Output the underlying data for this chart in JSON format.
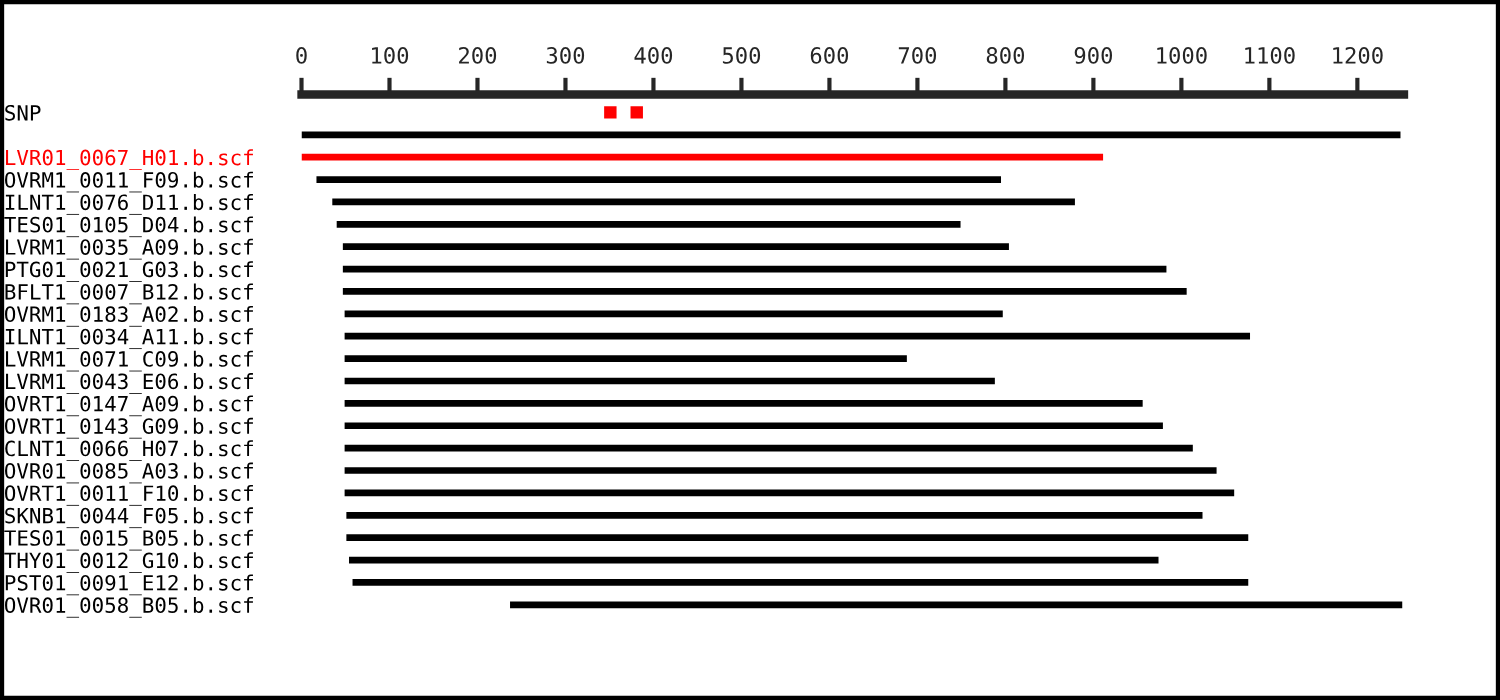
{
  "chart_data": {
    "type": "bar",
    "orientation": "horizontal",
    "categories": [
      "SNP",
      null,
      "LVR01_0067_H01.b.scf",
      "OVRM1_0011_F09.b.scf",
      "ILNT1_0076_D11.b.scf",
      "TES01_0105_D04.b.scf",
      "LVRM1_0035_A09.b.scf",
      "PTG01_0021_G03.b.scf",
      "BFLT1_0007_B12.b.scf",
      "OVRM1_0183_A02.b.scf",
      "ILNT1_0034_A11.b.scf",
      "LVRM1_0071_C09.b.scf",
      "LVRM1_0043_E06.b.scf",
      "OVRT1_0147_A09.b.scf",
      "OVRT1_0143_G09.b.scf",
      "CLNT1_0066_H07.b.scf",
      "OVR01_0085_A03.b.scf",
      "OVRT1_0011_F10.b.scf",
      "SKNB1_0044_F05.b.scf",
      "TES01_0015_B05.b.scf",
      "THY01_0012_G10.b.scf",
      "PST01_0091_E12.b.scf",
      "OVR01_0058_B05.b.scf"
    ],
    "series": [
      {
        "values": [
          null,
          1249,
          911,
          778,
          844,
          709,
          757,
          936,
          959,
          748,
          1029,
          639,
          739,
          907,
          930,
          964,
          991,
          1011,
          973,
          1025,
          920,
          1018,
          1014
        ],
        "base": [
          null,
          0,
          0,
          17,
          35,
          40,
          47,
          47,
          47,
          49,
          49,
          49,
          49,
          49,
          49,
          49,
          49,
          49,
          51,
          51,
          54,
          58,
          237
        ],
        "colors": [
          "#000000",
          "#000000",
          "#ff0000",
          "#000000",
          "#000000",
          "#000000",
          "#000000",
          "#000000",
          "#000000",
          "#000000",
          "#000000",
          "#000000",
          "#000000",
          "#000000",
          "#000000",
          "#000000",
          "#000000",
          "#000000",
          "#000000",
          "#000000",
          "#000000",
          "#000000",
          "#000000"
        ]
      },
      {
        "type": "scatter",
        "color": "#ff0000",
        "marker": "square",
        "values": [
          351,
          null,
          null,
          null,
          null,
          null,
          null,
          null,
          null,
          null,
          null,
          null,
          null,
          null,
          null,
          null,
          null,
          null,
          null,
          null,
          null,
          null,
          null
        ]
      },
      {
        "type": "scatter",
        "color": "#ff0000",
        "marker": "square",
        "values": [
          381,
          null,
          null,
          null,
          null,
          null,
          null,
          null,
          null,
          null,
          null,
          null,
          null,
          null,
          null,
          null,
          null,
          null,
          null,
          null,
          null,
          null,
          null
        ]
      }
    ],
    "xlim": [
      0,
      1253
    ],
    "xticks": [
      0,
      100,
      200,
      300,
      400,
      500,
      600,
      700,
      800,
      900,
      1000,
      1100,
      1200
    ],
    "grid": false,
    "legend": false
  }
}
